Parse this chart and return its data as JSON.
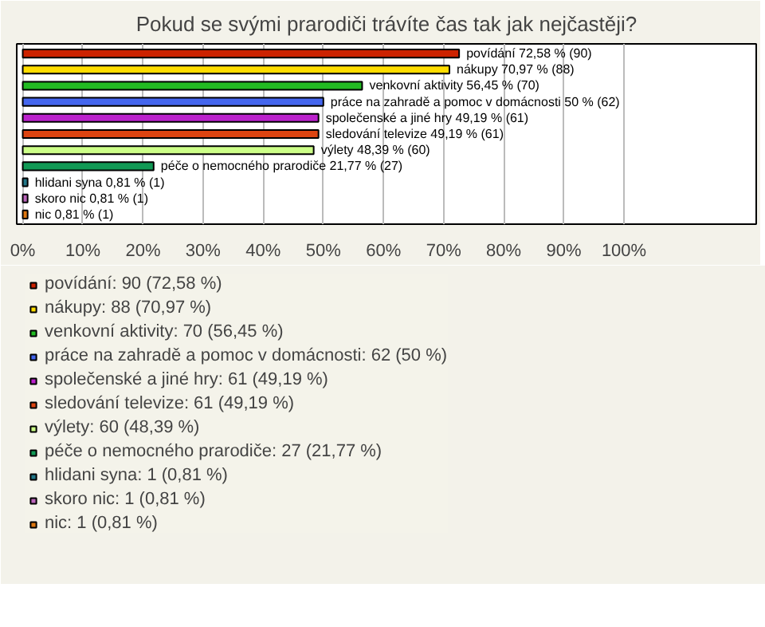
{
  "chart_data": {
    "type": "bar",
    "orientation": "horizontal",
    "title": "Pokud se svými prarodiči trávíte čas tak jak nejčastěji?",
    "categories": [
      null,
      null,
      null,
      null,
      null,
      null,
      null,
      null,
      null,
      null,
      null
    ],
    "xlim": [
      -1,
      122
    ],
    "xticks": [
      {
        "value": 0,
        "label": "0%"
      },
      {
        "value": 10,
        "label": "10%"
      },
      {
        "value": 20,
        "label": "20%"
      },
      {
        "value": 30,
        "label": "30%"
      },
      {
        "value": 40,
        "label": "40%"
      },
      {
        "value": 50,
        "label": "50%"
      },
      {
        "value": 60,
        "label": "60%"
      },
      {
        "value": 70,
        "label": "70%"
      },
      {
        "value": 80,
        "label": "80%"
      },
      {
        "value": 90,
        "label": "90%"
      },
      {
        "value": 100,
        "label": "100%"
      }
    ],
    "grid": "x",
    "legend": "bottom",
    "series": [
      {
        "name": "povídání: 90 (72,58 %)",
        "color": "#cc2200",
        "values": [
          72.58,
          null,
          null,
          null,
          null,
          null,
          null,
          null,
          null,
          null,
          null
        ],
        "value_labels": [
          "povídání 72,58 % (90)",
          null,
          null,
          null,
          null,
          null,
          null,
          null,
          null,
          null,
          null
        ]
      },
      {
        "name": "nákupy: 88 (70,97 %)",
        "color": "#ffdd00",
        "values": [
          null,
          70.97,
          null,
          null,
          null,
          null,
          null,
          null,
          null,
          null,
          null
        ],
        "value_labels": [
          null,
          "nákupy 70,97 % (88)",
          null,
          null,
          null,
          null,
          null,
          null,
          null,
          null,
          null
        ]
      },
      {
        "name": "venkovní aktivity: 70 (56,45 %)",
        "color": "#22bb22",
        "values": [
          null,
          null,
          56.45,
          null,
          null,
          null,
          null,
          null,
          null,
          null,
          null
        ],
        "value_labels": [
          null,
          null,
          "venkovní aktivity 56,45 % (70)",
          null,
          null,
          null,
          null,
          null,
          null,
          null,
          null
        ]
      },
      {
        "name": "práce na zahradě a pomoc v domácnosti: 62 (50 %)",
        "color": "#4466ee",
        "values": [
          null,
          null,
          null,
          50,
          null,
          null,
          null,
          null,
          null,
          null,
          null
        ],
        "value_labels": [
          null,
          null,
          null,
          "práce na zahradě a pomoc v domácnosti 50 % (62)",
          null,
          null,
          null,
          null,
          null,
          null,
          null
        ]
      },
      {
        "name": "společenské a jiné hry: 61 (49,19 %)",
        "color": "#bb22cc",
        "values": [
          null,
          null,
          null,
          null,
          49.19,
          null,
          null,
          null,
          null,
          null,
          null
        ],
        "value_labels": [
          null,
          null,
          null,
          null,
          "společenské a jiné hry 49,19 % (61)",
          null,
          null,
          null,
          null,
          null,
          null
        ]
      },
      {
        "name": "sledování televize: 61 (49,19 %)",
        "color": "#dd4411",
        "values": [
          null,
          null,
          null,
          null,
          null,
          49.19,
          null,
          null,
          null,
          null,
          null
        ],
        "value_labels": [
          null,
          null,
          null,
          null,
          null,
          "sledování televize 49,19 % (61)",
          null,
          null,
          null,
          null,
          null
        ]
      },
      {
        "name": "výlety: 60 (48,39 %)",
        "color": "#ccff88",
        "values": [
          null,
          null,
          null,
          null,
          null,
          null,
          48.39,
          null,
          null,
          null,
          null
        ],
        "value_labels": [
          null,
          null,
          null,
          null,
          null,
          null,
          "výlety 48,39 % (60)",
          null,
          null,
          null,
          null
        ]
      },
      {
        "name": "péče o nemocného prarodiče: 27 (21,77 %)",
        "color": "#119955",
        "values": [
          null,
          null,
          null,
          null,
          null,
          null,
          null,
          21.77,
          null,
          null,
          null
        ],
        "value_labels": [
          null,
          null,
          null,
          null,
          null,
          null,
          null,
          "péče o nemocného prarodiče 21,77 % (27)",
          null,
          null,
          null
        ]
      },
      {
        "name": "hlidani syna: 1 (0,81 %)",
        "color": "#227788",
        "values": [
          null,
          null,
          null,
          null,
          null,
          null,
          null,
          null,
          0.81,
          null,
          null
        ],
        "value_labels": [
          null,
          null,
          null,
          null,
          null,
          null,
          null,
          null,
          "hlidani syna 0,81 % (1)",
          null,
          null
        ]
      },
      {
        "name": "skoro nic: 1 (0,81 %)",
        "color": "#bb66bb",
        "values": [
          null,
          null,
          null,
          null,
          null,
          null,
          null,
          null,
          null,
          0.81,
          null
        ],
        "value_labels": [
          null,
          null,
          null,
          null,
          null,
          null,
          null,
          null,
          null,
          "skoro nic 0,81 % (1)",
          null
        ]
      },
      {
        "name": "nic: 1 (0,81 %)",
        "color": "#dd7711",
        "values": [
          null,
          null,
          null,
          null,
          null,
          null,
          null,
          null,
          null,
          null,
          0.81
        ],
        "value_labels": [
          null,
          null,
          null,
          null,
          null,
          null,
          null,
          null,
          null,
          null,
          "nic 0,81 % (1)"
        ]
      }
    ]
  }
}
